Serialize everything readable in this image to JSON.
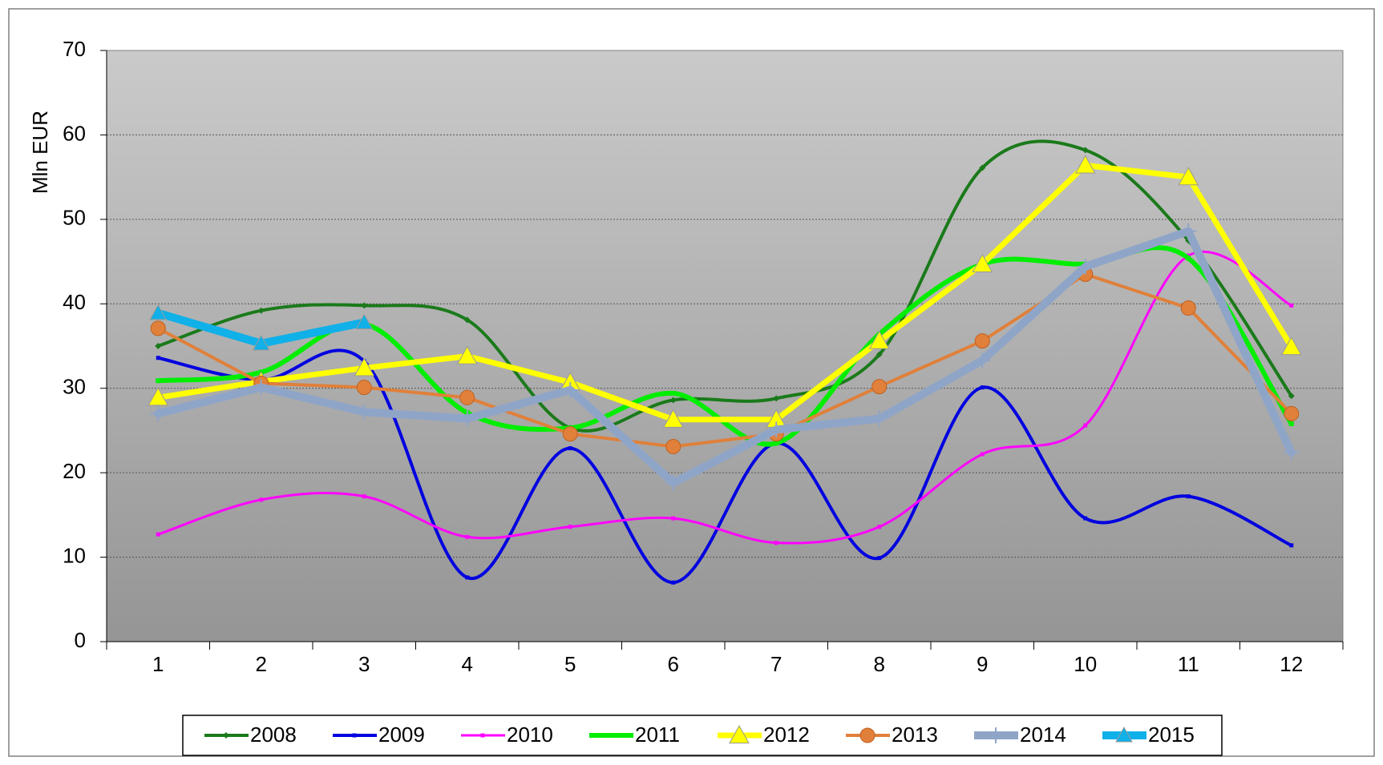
{
  "chart_data": {
    "type": "line",
    "y_label": "Mln EUR",
    "categories": [
      "1",
      "2",
      "3",
      "4",
      "5",
      "6",
      "7",
      "8",
      "9",
      "10",
      "11",
      "12"
    ],
    "ylim": [
      0,
      70
    ],
    "yticks": [
      0,
      10,
      20,
      30,
      40,
      50,
      60,
      70
    ],
    "grid": true,
    "legend": "bottom",
    "series": [
      {
        "name": "2008",
        "color": "#1a7a1a",
        "smooth": true,
        "marker": "diamond",
        "values": [
          35,
          39.2,
          39.8,
          38.1,
          25.3,
          28.6,
          28.8,
          34,
          56.1,
          58.2,
          47.5,
          29.1
        ]
      },
      {
        "name": "2009",
        "color": "#0000e0",
        "smooth": true,
        "marker": "square",
        "values": [
          33.6,
          31,
          33.2,
          7.6,
          22.9,
          7,
          23.5,
          9.9,
          30.1,
          14.6,
          17.2,
          11.4
        ]
      },
      {
        "name": "2010",
        "color": "#ff00ff",
        "smooth": true,
        "marker": "square",
        "values": [
          12.7,
          16.8,
          17.2,
          12.4,
          13.6,
          14.6,
          11.7,
          13.6,
          22.2,
          25.6,
          45.7,
          39.8
        ]
      },
      {
        "name": "2011",
        "color": "#00ee00",
        "smooth": true,
        "marker": "square",
        "values": [
          30.9,
          31.9,
          37.6,
          27.1,
          25.3,
          29.4,
          23.5,
          36.4,
          44.7,
          44.7,
          45.4,
          25.8
        ]
      },
      {
        "name": "2012",
        "color": "#ffff00",
        "smooth": false,
        "marker": "triangle",
        "values": [
          28.9,
          30.8,
          32.4,
          33.8,
          30.7,
          26.3,
          26.3,
          35.6,
          44.7,
          56.4,
          55,
          34.9
        ]
      },
      {
        "name": "2013",
        "color": "#e0803a",
        "smooth": false,
        "marker": "circle",
        "values": [
          37.1,
          30.6,
          30.1,
          28.9,
          24.6,
          23.1,
          24.6,
          30.2,
          35.6,
          43.5,
          39.5,
          27
        ]
      },
      {
        "name": "2014",
        "color": "#8fa5c8",
        "smooth": false,
        "marker": "plus",
        "values": [
          27,
          30.1,
          27.2,
          26.4,
          29.8,
          18.8,
          25.1,
          26.4,
          33.3,
          44.4,
          48.6,
          22.4
        ]
      },
      {
        "name": "2015",
        "color": "#10b0e8",
        "smooth": false,
        "marker": "triangle",
        "values": [
          38.9,
          35.3,
          37.8,
          null,
          null,
          null,
          null,
          null,
          null,
          null,
          null,
          null
        ]
      }
    ]
  }
}
